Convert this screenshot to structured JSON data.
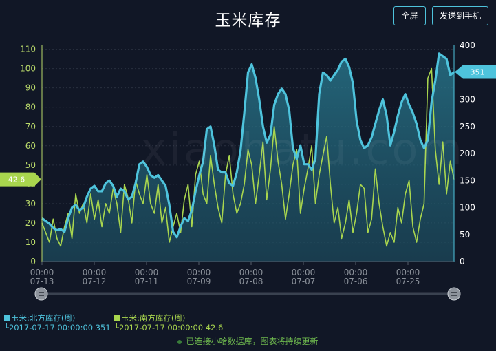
{
  "header": {
    "title": "玉米库存",
    "fullscreen_label": "全屏",
    "send_label": "发送到手机"
  },
  "watermark": "xiaohatu.com",
  "colors": {
    "background": "#111726",
    "north": "#4ec3dc",
    "south": "#a9d64e"
  },
  "left_marker": "42.6",
  "right_marker": "351",
  "legend": {
    "north_name": "玉米:北方库存(周)",
    "north_detail": "2017-07-17 00:00:00 351",
    "south_name": "玉米:南方库存(周)",
    "south_detail": "2017-07-17 00:00:00 42.6"
  },
  "status": "已连接小哈数据库，图表将持续更新",
  "chart_data": {
    "type": "line",
    "x_tick_labels": [
      [
        "00:00",
        "07-13"
      ],
      [
        "00:00",
        "07-12"
      ],
      [
        "00:00",
        "07-11"
      ],
      [
        "00:00",
        "07-09"
      ],
      [
        "00:00",
        "07-08"
      ],
      [
        "00:00",
        "07-07"
      ],
      [
        "00:00",
        "07-06"
      ],
      [
        "00:00",
        "07-25"
      ]
    ],
    "y_left_ticks": [
      0,
      10,
      20,
      30,
      40,
      50,
      60,
      70,
      80,
      90,
      100,
      110
    ],
    "y_right_ticks": [
      0,
      50,
      100,
      150,
      200,
      250,
      300,
      350,
      400
    ],
    "y_left_range": [
      0,
      112
    ],
    "y_right_range": [
      0,
      400
    ],
    "series": [
      {
        "name": "玉米:北方库存(周)",
        "axis": "right",
        "style": "area",
        "values": [
          80,
          75,
          70,
          62,
          58,
          60,
          55,
          80,
          100,
          105,
          95,
          100,
          120,
          135,
          140,
          130,
          130,
          145,
          150,
          140,
          120,
          135,
          130,
          115,
          120,
          145,
          180,
          185,
          175,
          160,
          155,
          160,
          150,
          140,
          105,
          55,
          45,
          65,
          80,
          75,
          95,
          130,
          160,
          185,
          245,
          250,
          215,
          170,
          165,
          165,
          145,
          140,
          165,
          205,
          275,
          350,
          365,
          340,
          300,
          250,
          220,
          235,
          290,
          310,
          320,
          310,
          280,
          210,
          190,
          215,
          180,
          180,
          170,
          190,
          310,
          350,
          345,
          335,
          345,
          355,
          370,
          375,
          360,
          330,
          260,
          225,
          210,
          215,
          230,
          255,
          280,
          300,
          270,
          215,
          240,
          270,
          295,
          310,
          290,
          275,
          255,
          225,
          210,
          225,
          295,
          335,
          385,
          380,
          375,
          345,
          351
        ]
      },
      {
        "name": "玉米:南方库存(周)",
        "axis": "left",
        "style": "line",
        "values": [
          20,
          15,
          10,
          22,
          12,
          8,
          18,
          25,
          12,
          35,
          25,
          30,
          20,
          35,
          22,
          32,
          18,
          30,
          25,
          38,
          30,
          15,
          40,
          33,
          20,
          42,
          35,
          30,
          45,
          30,
          25,
          40,
          20,
          28,
          10,
          18,
          25,
          15,
          32,
          40,
          18,
          45,
          52,
          35,
          30,
          55,
          40,
          28,
          20,
          45,
          55,
          35,
          25,
          30,
          40,
          58,
          50,
          30,
          45,
          62,
          32,
          48,
          70,
          52,
          40,
          22,
          35,
          50,
          58,
          25,
          38,
          48,
          60,
          30,
          45,
          55,
          65,
          40,
          20,
          28,
          12,
          20,
          32,
          15,
          25,
          40,
          38,
          15,
          22,
          48,
          30,
          18,
          8,
          15,
          10,
          28,
          20,
          35,
          42,
          18,
          10,
          22,
          30,
          95,
          100,
          58,
          40,
          62,
          35,
          52,
          42.6
        ]
      }
    ]
  }
}
